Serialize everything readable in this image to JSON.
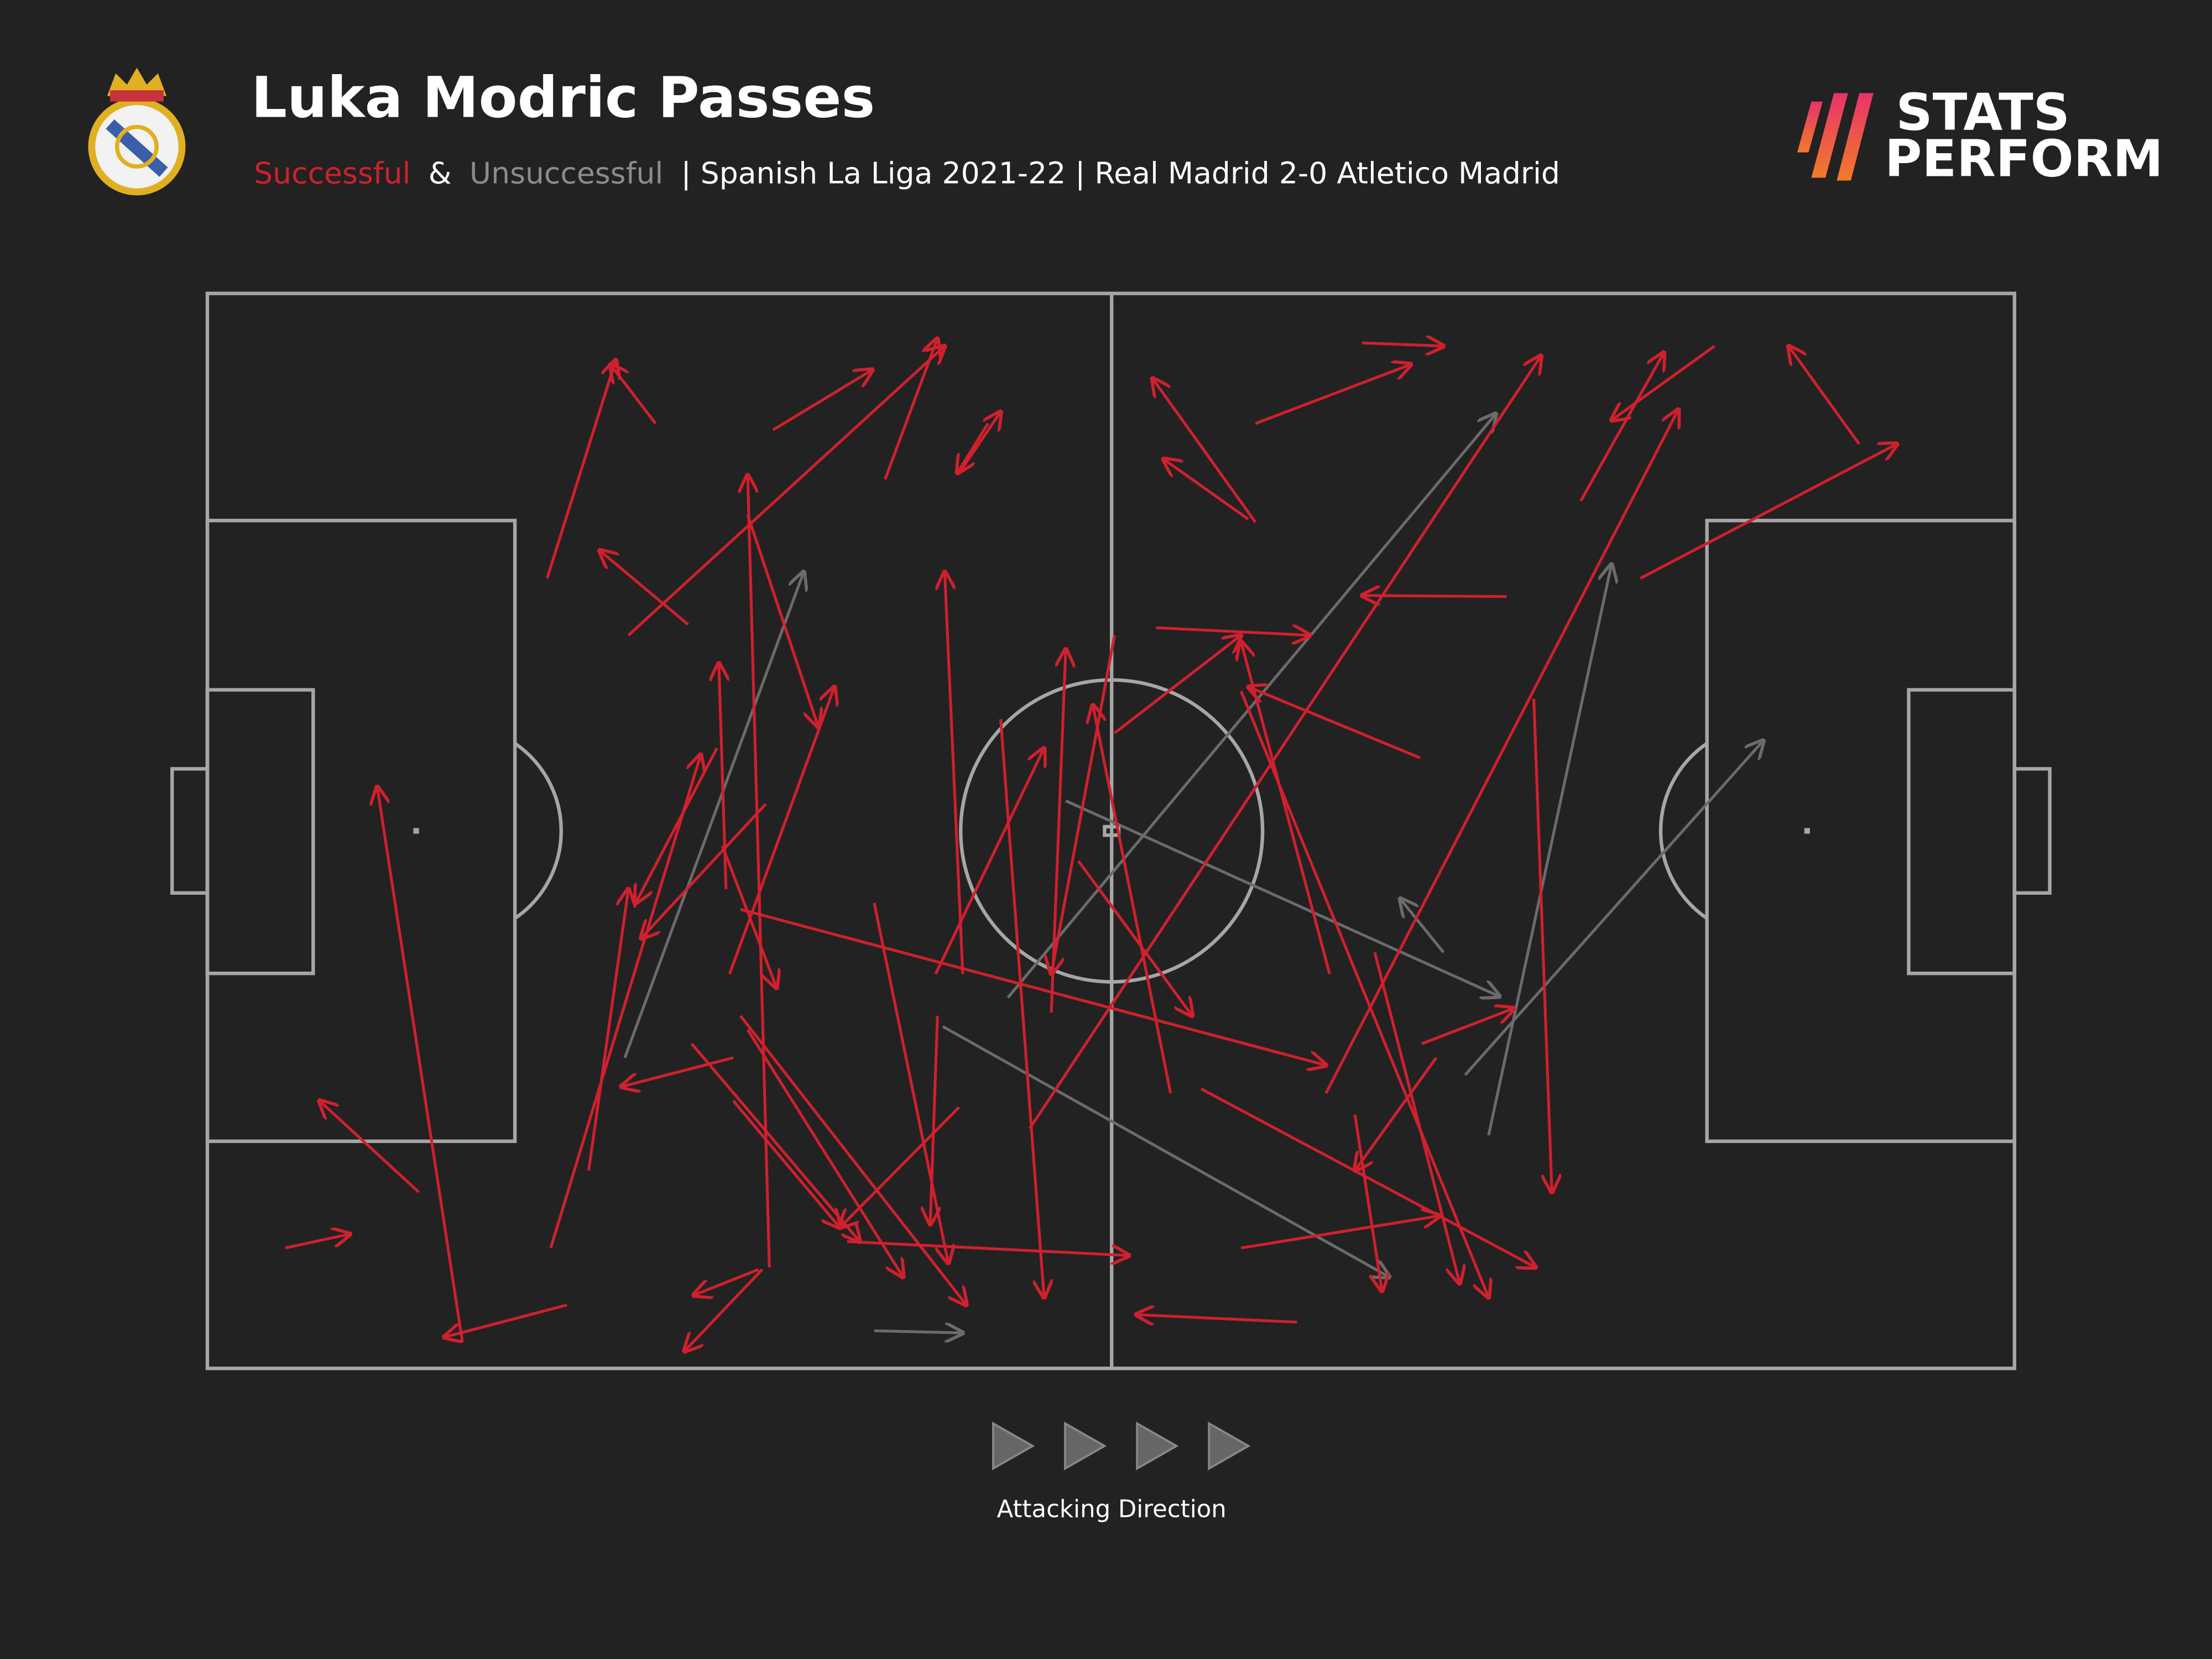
{
  "chart_data": {
    "type": "pass",
    "title": "Luka Modric Passes",
    "subtitle_joiner": "&",
    "subtitle": "| Spanish La Liga 2021-22 | Real Madrid 2-0 Atletico Madrid",
    "brand": [
      "STATS",
      "PERFORM"
    ],
    "footer": "Attacking Direction",
    "xlim": [
      0,
      100
    ],
    "ylim": [
      0,
      100
    ],
    "series": [
      {
        "name": "Successful",
        "color": "#d0202e",
        "values": [
          [
            18.8,
            26.5,
            22.6,
            6.2
          ],
          [
            24.8,
            12.1,
            22.3,
            6.6
          ],
          [
            23.3,
            31.8,
            40.8,
            4.9
          ],
          [
            31.3,
            12.7,
            36.8,
            7.1
          ],
          [
            37.5,
            17.3,
            40.4,
            4.2
          ],
          [
            26.6,
            30.8,
            21.7,
            23.9
          ],
          [
            41.6,
            16.7,
            43.9,
            11.0
          ],
          [
            43.2,
            12.1,
            41.5,
            16.7
          ],
          [
            31.1,
            90.6,
            29.9,
            16.9
          ],
          [
            29.9,
            20.6,
            33.8,
            40.3
          ],
          [
            41.8,
            63.3,
            40.8,
            25.9
          ],
          [
            19.0,
            88.8,
            27.3,
            42.9
          ],
          [
            19.9,
            94.1,
            13.1,
            97.1
          ],
          [
            14.1,
            97.4,
            9.4,
            45.9
          ],
          [
            11.7,
            83.6,
            6.2,
            75.1
          ],
          [
            4.3,
            88.8,
            7.9,
            87.5
          ],
          [
            21.1,
            81.6,
            23.3,
            55.4
          ],
          [
            30.7,
            90.8,
            26.4,
            98.4
          ],
          [
            30.5,
            90.8,
            26.9,
            93.2
          ],
          [
            28.7,
            55.4,
            28.3,
            34.4
          ],
          [
            30.9,
            47.5,
            24.0,
            60.0
          ],
          [
            28.9,
            63.3,
            34.7,
            36.6
          ],
          [
            28.2,
            42.3,
            23.7,
            56.7
          ],
          [
            28.5,
            51.4,
            31.5,
            64.6
          ],
          [
            29.5,
            57.3,
            61.9,
            71.8
          ],
          [
            29.1,
            71.1,
            22.9,
            73.8
          ],
          [
            26.8,
            69.8,
            36.1,
            88.2
          ],
          [
            29.9,
            68.5,
            38.5,
            91.5
          ],
          [
            29.1,
            75.1,
            35.0,
            86.9
          ],
          [
            29.5,
            67.2,
            42.0,
            94.1
          ],
          [
            40.4,
            67.2,
            40.0,
            86.6
          ],
          [
            41.6,
            75.7,
            35.0,
            86.9
          ],
          [
            43.9,
            39.6,
            46.3,
            93.4
          ],
          [
            40.3,
            63.3,
            46.3,
            42.3
          ],
          [
            46.7,
            66.9,
            47.5,
            33.1
          ],
          [
            50.2,
            31.8,
            46.7,
            63.3
          ],
          [
            48.2,
            52.8,
            54.5,
            67.2
          ],
          [
            36.9,
            56.7,
            41.0,
            90.2
          ],
          [
            35.4,
            88.2,
            51.0,
            89.5
          ],
          [
            45.5,
            77.7,
            73.8,
            5.8
          ],
          [
            50.2,
            40.9,
            57.2,
            31.8
          ],
          [
            52.5,
            31.1,
            61.0,
            31.8
          ],
          [
            58.0,
            21.3,
            52.3,
            7.9
          ],
          [
            57.6,
            21.0,
            52.9,
            15.4
          ],
          [
            58.0,
            12.1,
            66.6,
            6.6
          ],
          [
            63.9,
            4.6,
            68.4,
            4.9
          ],
          [
            61.9,
            74.4,
            81.4,
            10.8
          ],
          [
            76.0,
            19.3,
            80.6,
            5.5
          ],
          [
            83.4,
            4.9,
            77.7,
            11.8
          ],
          [
            91.4,
            14.0,
            87.5,
            4.9
          ],
          [
            79.3,
            26.5,
            93.5,
            14.0
          ],
          [
            71.9,
            28.2,
            63.9,
            28.1
          ],
          [
            67.1,
            43.2,
            57.6,
            36.6
          ],
          [
            62.1,
            63.3,
            57.2,
            32.4
          ],
          [
            53.3,
            74.4,
            49.0,
            38.3
          ],
          [
            73.4,
            37.7,
            74.4,
            83.6
          ],
          [
            67.2,
            69.8,
            72.3,
            66.5
          ],
          [
            68.0,
            71.1,
            63.5,
            81.6
          ],
          [
            64.6,
            61.3,
            69.3,
            92.1
          ],
          [
            55.0,
            74.0,
            73.5,
            90.6
          ],
          [
            57.2,
            88.8,
            68.2,
            85.8
          ],
          [
            60.3,
            95.7,
            51.4,
            95.0
          ],
          [
            63.5,
            76.4,
            65.0,
            92.8
          ],
          [
            57.2,
            37.0,
            70.9,
            93.4
          ]
        ]
      },
      {
        "name": "Unsuccessful",
        "color": "#6b6b6b",
        "values": [
          [
            23.1,
            71.1,
            33.0,
            25.9
          ],
          [
            44.3,
            65.5,
            71.3,
            11.2
          ],
          [
            47.5,
            47.2,
            71.5,
            65.4
          ],
          [
            40.7,
            68.2,
            65.4,
            91.5
          ],
          [
            68.4,
            61.3,
            66.0,
            56.3
          ],
          [
            69.6,
            72.7,
            86.1,
            41.6
          ],
          [
            70.9,
            78.3,
            77.7,
            25.2
          ],
          [
            36.9,
            96.5,
            41.8,
            96.7
          ]
        ]
      }
    ]
  }
}
